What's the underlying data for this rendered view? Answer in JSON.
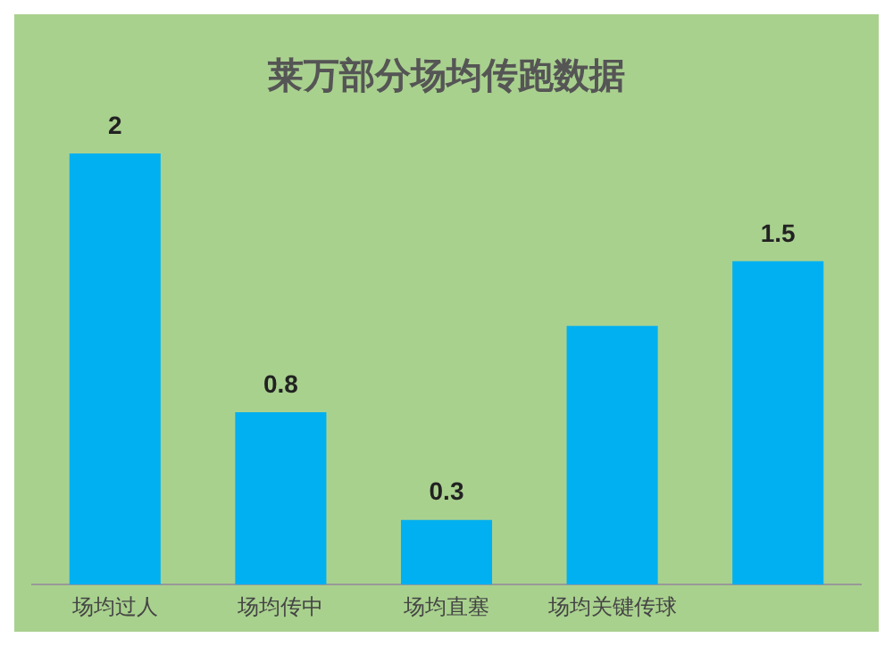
{
  "chart_data": {
    "type": "bar",
    "title": "莱万部分场均传跑数据",
    "categories": [
      "场均过人",
      "场均传中",
      "场均直塞",
      "场均关键传球",
      null
    ],
    "values": [
      2,
      0.8,
      0.3,
      1.2,
      1.5
    ],
    "value_labels": [
      "2",
      "0.8",
      "0.3",
      null,
      "1.5"
    ],
    "color": "#00b0f0",
    "grid": false,
    "legend": false
  }
}
